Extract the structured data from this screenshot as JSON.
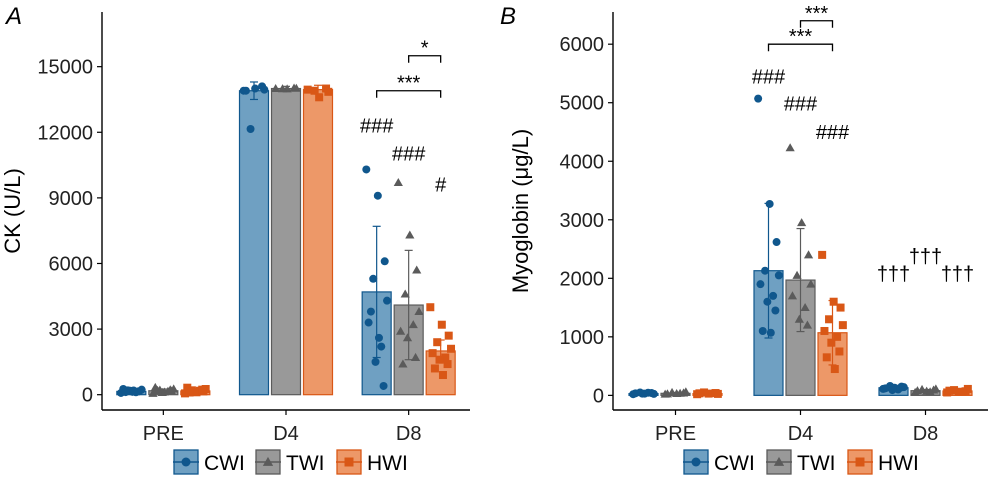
{
  "colors": {
    "CWI": "#10578d",
    "TWI": "#5b5b5b",
    "HWI": "#d95716",
    "CWI_fill": "#6fa0c2",
    "TWI_fill": "#999999",
    "HWI_fill": "#ed9868"
  },
  "legend": {
    "items": [
      {
        "label": "CWI",
        "group": "CWI",
        "marker": "circle"
      },
      {
        "label": "TWI",
        "group": "TWI",
        "marker": "triangle"
      },
      {
        "label": "HWI",
        "group": "HWI",
        "marker": "square"
      }
    ],
    "position": "bottom"
  },
  "chart_data": [
    {
      "panel": "A",
      "type": "bar",
      "ylabel": "CK (U/L)",
      "xlabel": "",
      "categories": [
        "PRE",
        "D4",
        "D8"
      ],
      "ylim": [
        -700,
        17500
      ],
      "yticks": [
        0,
        3000,
        6000,
        9000,
        12000,
        15000
      ],
      "ytick_labels": [
        "0",
        "3000",
        "6000",
        "9000",
        "12000",
        "15000"
      ],
      "grid": false,
      "series": [
        {
          "name": "CWI",
          "values": [
            150,
            13900,
            4700
          ],
          "sd": [
            60,
            400,
            3000
          ],
          "points": [
            [
              80,
              130,
              160,
              200,
              230,
              260,
              110,
              180,
              150,
              120,
              190
            ],
            [
              13900,
              14000,
              14100,
              12150,
              13950,
              13900
            ],
            [
              10300,
              9100,
              6100,
              5300,
              4300,
              3300,
              2200,
              1500,
              400,
              3800,
              2600
            ]
          ]
        },
        {
          "name": "TWI",
          "values": [
            180,
            14000,
            4100
          ],
          "sd": [
            80,
            100,
            2500
          ],
          "points": [
            [
              60,
              120,
              170,
              210,
              260,
              330,
              150,
              100,
              220,
              190
            ],
            [
              14000,
              13980,
              14020,
              13990,
              14010
            ],
            [
              9700,
              7300,
              5700,
              4600,
              3800,
              2900,
              3200,
              2600,
              1700,
              1400
            ]
          ]
        },
        {
          "name": "HWI",
          "values": [
            170,
            13950,
            2000
          ],
          "sd": [
            70,
            200,
            500
          ],
          "points": [
            [
              60,
              110,
              150,
              200,
              260,
              320,
              180,
              140,
              230,
              100
            ],
            [
              13950,
              13600,
              14000,
              13900,
              13850
            ],
            [
              4000,
              3200,
              2700,
              2400,
              2100,
              1900,
              1700,
              1600,
              1400,
              1200,
              900
            ]
          ]
        }
      ],
      "annotations": [
        {
          "text": "###",
          "category": "D8",
          "series": "CWI",
          "value": 12000
        },
        {
          "text": "###",
          "category": "D8",
          "series": "TWI",
          "value": 10700
        },
        {
          "text": "#",
          "category": "D8",
          "series": "HWI",
          "value": 9300
        },
        {
          "text": "***",
          "from": "CWI",
          "to": "HWI",
          "category": "D8",
          "value": 13900
        },
        {
          "text": "*",
          "from": "TWI",
          "to": "HWI",
          "category": "D8",
          "value": 15500
        }
      ]
    },
    {
      "panel": "B",
      "type": "bar",
      "ylabel": "Myoglobin (μg/L)",
      "xlabel": "",
      "categories": [
        "PRE",
        "D4",
        "D8"
      ],
      "ylim": [
        -250,
        6550
      ],
      "yticks": [
        0,
        1000,
        2000,
        3000,
        4000,
        5000,
        6000
      ],
      "ytick_labels": [
        "0",
        "1000",
        "2000",
        "3000",
        "4000",
        "5000",
        "6000"
      ],
      "grid": false,
      "series": [
        {
          "name": "CWI",
          "values": [
            30,
            2130,
            130
          ],
          "sd": [
            10,
            1150,
            30
          ],
          "points": [
            [
              20,
              30,
              40,
              50,
              25,
              35,
              45,
              30
            ],
            [
              5070,
              3270,
              2620,
              2130,
              2050,
              1900,
              1700,
              1600,
              1450,
              1100,
              1070
            ],
            [
              110,
              130,
              150,
              160,
              140,
              120,
              100,
              90,
              130
            ]
          ]
        },
        {
          "name": "TWI",
          "values": [
            35,
            1970,
            80
          ],
          "sd": [
            15,
            880,
            20
          ],
          "points": [
            [
              20,
              30,
              40,
              50,
              60,
              25,
              35
            ],
            [
              4230,
              2950,
              2400,
              2050,
              1900,
              1700,
              1500,
              1300,
              1200
            ],
            [
              50,
              70,
              90,
              100,
              110,
              80,
              60
            ]
          ]
        },
        {
          "name": "HWI",
          "values": [
            30,
            1070,
            75
          ],
          "sd": [
            12,
            550,
            25
          ],
          "points": [
            [
              20,
              30,
              40,
              50,
              25,
              35
            ],
            [
              2400,
              1600,
              1500,
              1300,
              1200,
              1100,
              1000,
              900,
              750,
              650,
              450
            ],
            [
              50,
              60,
              70,
              90,
              110,
              80,
              60
            ]
          ]
        }
      ],
      "annotations": [
        {
          "text": "###",
          "category": "D4",
          "series": "CWI",
          "value": 5330
        },
        {
          "text": "###",
          "category": "D4",
          "series": "TWI",
          "value": 4870
        },
        {
          "text": "###",
          "category": "D4",
          "series": "HWI",
          "value": 4380
        },
        {
          "text": "***",
          "from": "CWI",
          "to": "HWI",
          "category": "D4",
          "value": 6000
        },
        {
          "text": "***",
          "from": "TWI",
          "to": "HWI",
          "category": "D4",
          "value": 6400
        },
        {
          "text": "†††",
          "category": "D8",
          "series": "CWI",
          "value": 1960
        },
        {
          "text": "†††",
          "category": "D8",
          "series": "TWI",
          "value": 2260
        },
        {
          "text": "†††",
          "category": "D8",
          "series": "HWI",
          "value": 1960
        }
      ]
    }
  ]
}
